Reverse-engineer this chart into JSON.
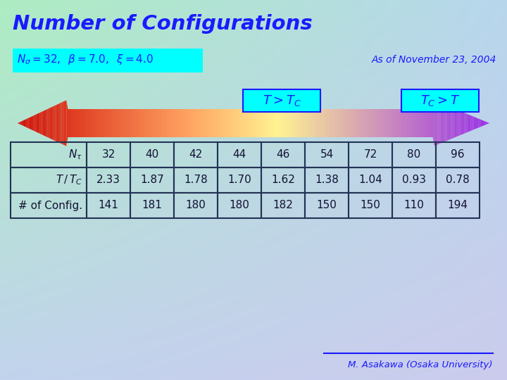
{
  "title": "Number of Configurations",
  "title_color": "#1a1aff",
  "params_box_text": "$N_{\\sigma} = 32,\\;\\; \\beta = 7.0,\\;\\; \\xi = 4.0$",
  "date_text": "As of November 23, 2004",
  "label_T_gt_Tc": "$T > T_C$",
  "label_Tc_gt_T": "$T_C > T$",
  "table_headers": [
    "$N_{\\tau}$",
    "32",
    "40",
    "42",
    "44",
    "46",
    "54",
    "72",
    "80",
    "96"
  ],
  "table_row2": [
    "$T\\,/\\,T_C$",
    "2.33",
    "1.87",
    "1.78",
    "1.70",
    "1.62",
    "1.38",
    "1.04",
    "0.93",
    "0.78"
  ],
  "table_row3": [
    "# of Config.",
    "141",
    "181",
    "180",
    "180",
    "182",
    "150",
    "150",
    "110",
    "194"
  ],
  "footer_text": "M. Asakawa (Osaka University)",
  "arrow_colors": [
    "#cc2200",
    "#dd4400",
    "#ee7700",
    "#ffaa00",
    "#ffdd44",
    "#ffff88",
    "#ffff44",
    "#dddd00",
    "#ccaa00",
    "#aa8800",
    "#998822",
    "#887733",
    "#776644",
    "#665566",
    "#554477",
    "#443388",
    "#3322aa",
    "#5522bb"
  ],
  "bg_tl": [
    0.68,
    0.93,
    0.76
  ],
  "bg_tr": [
    0.72,
    0.84,
    0.93
  ],
  "bg_bl": [
    0.76,
    0.83,
    0.93
  ],
  "bg_br": [
    0.8,
    0.8,
    0.93
  ]
}
